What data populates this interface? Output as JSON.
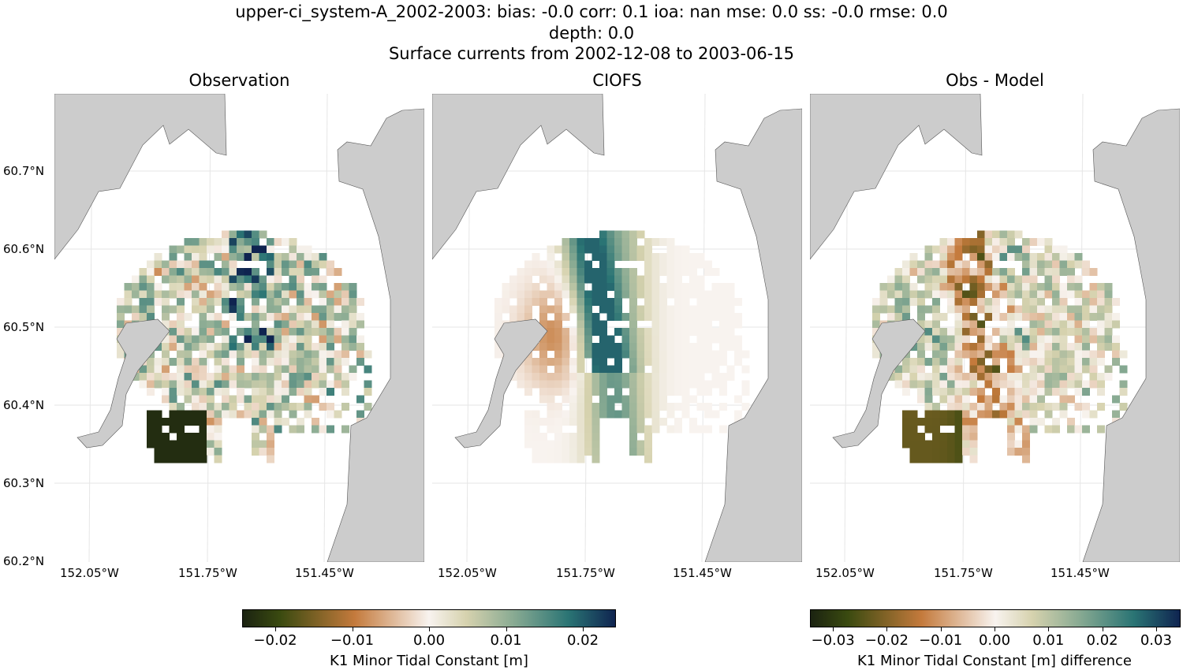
{
  "title": {
    "line1": "upper-ci_system-A_2002-2003: bias: -0.0  corr: 0.1  ioa: nan  mse: 0.0  ss: -0.0  rmse: 0.0",
    "line2": "depth: 0.0",
    "line3": "Surface currents from 2002-12-08 to 2003-06-15"
  },
  "panels": [
    {
      "title": "Observation"
    },
    {
      "title": "CIOFS"
    },
    {
      "title": "Obs - Model"
    }
  ],
  "lat_ticks": [
    "60.7°N",
    "60.6°N",
    "60.5°N",
    "60.4°N",
    "60.3°N",
    "60.2°N"
  ],
  "lon_ticks": [
    "152.05°W",
    "151.75°W",
    "151.45°W"
  ],
  "colorbars": [
    {
      "label": "K1 Minor Tidal Constant [m]",
      "ticks": [
        "−0.02",
        "−0.01",
        "0.00",
        "0.01",
        "0.02"
      ],
      "range": [
        -0.0243,
        0.0243
      ]
    },
    {
      "label": "K1 Minor Tidal Constant [m] difference",
      "ticks": [
        "−0.03",
        "−0.02",
        "−0.01",
        "0.00",
        "0.01",
        "0.02",
        "0.03"
      ],
      "range": [
        -0.0342,
        0.0342
      ]
    }
  ],
  "colors": {
    "land": "#cccccc",
    "colormap": [
      "#1b2311",
      "#3a4a10",
      "#c47a3c",
      "#f8f3ef",
      "#d6d2ae",
      "#8aab93",
      "#2a7474",
      "#0f2450"
    ]
  }
}
